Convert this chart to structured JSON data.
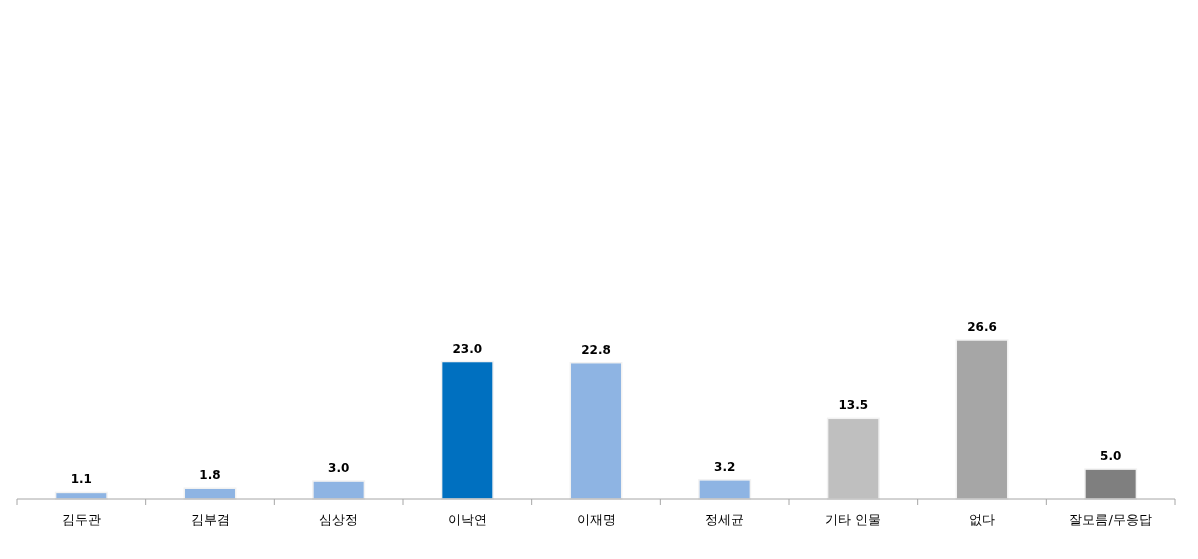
{
  "chart_data": {
    "type": "bar",
    "categories": [
      "김두관",
      "김부겸",
      "심상정",
      "이낙연",
      "이재명",
      "정세균",
      "기타 인물",
      "없다",
      "잘모름/무응답"
    ],
    "values": [
      1.1,
      1.8,
      3.0,
      23.0,
      22.8,
      3.2,
      13.5,
      26.6,
      5.0
    ],
    "colors": [
      "#8eb4e3",
      "#8eb4e3",
      "#8eb4e3",
      "#0070c0",
      "#8eb4e3",
      "#8eb4e3",
      "#bfbfbf",
      "#a6a6a6",
      "#7f7f7f"
    ],
    "value_labels": [
      "1.1",
      "1.8",
      "3.0",
      "23.0",
      "22.8",
      "3.2",
      "13.5",
      "26.6",
      "5.0"
    ]
  }
}
